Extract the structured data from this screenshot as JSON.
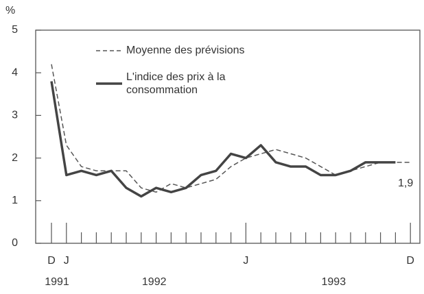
{
  "chart_data": {
    "type": "line",
    "unit_label": "%",
    "categories": [
      "D",
      "J",
      null,
      null,
      null,
      null,
      null,
      null,
      null,
      null,
      null,
      null,
      null,
      "J",
      null,
      null,
      null,
      null,
      null,
      null,
      null,
      null,
      null,
      null,
      "D"
    ],
    "x_group_labels": [
      "1991",
      "1992",
      "1993"
    ],
    "series": [
      {
        "name": "Moyenne des prévisions",
        "color": "#555555",
        "dash": true,
        "values": [
          4.2,
          2.3,
          1.8,
          1.7,
          1.7,
          1.7,
          1.3,
          1.2,
          1.4,
          1.3,
          1.4,
          1.5,
          1.8,
          2.0,
          2.1,
          2.2,
          2.1,
          2.0,
          1.8,
          1.6,
          1.7,
          1.8,
          1.9,
          1.9,
          1.9
        ]
      },
      {
        "name": "L'indice des prix à la consommation",
        "color": "#444444",
        "dash": false,
        "values": [
          3.8,
          1.6,
          1.7,
          1.6,
          1.7,
          1.3,
          1.1,
          1.3,
          1.2,
          1.3,
          1.6,
          1.7,
          2.1,
          2.0,
          2.3,
          1.9,
          1.8,
          1.8,
          1.6,
          1.6,
          1.7,
          1.9,
          1.9,
          1.9,
          null
        ]
      }
    ],
    "annotation": "1,9",
    "ylim": [
      0,
      5
    ],
    "yticks": [
      0,
      1,
      2,
      3,
      4,
      5
    ]
  }
}
